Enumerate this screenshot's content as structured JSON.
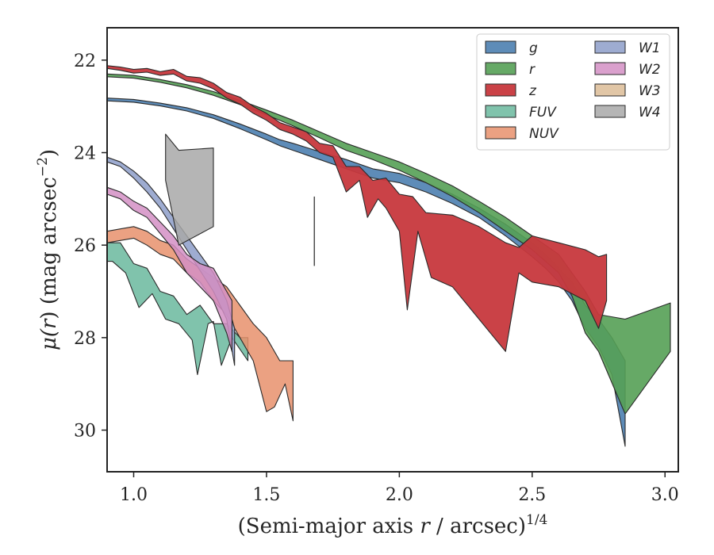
{
  "chart_data": {
    "type": "area",
    "title": "",
    "xlabel_prefix": "(Semi-major axis ",
    "xlabel_var": "r",
    "xlabel_mid": " / arcsec)",
    "xlabel_sup": "1/4",
    "ylabel_prefix": "μ(",
    "ylabel_var": "r",
    "ylabel_mid": ") (mag arcsec",
    "ylabel_sup": "−2",
    "ylabel_suffix": ")",
    "xlim": [
      0.9,
      3.05
    ],
    "ylim": [
      30.9,
      21.3
    ],
    "y_inverted": true,
    "xticks": [
      1.0,
      1.5,
      2.0,
      2.5,
      3.0
    ],
    "xtick_labels": [
      "1.0",
      "1.5",
      "2.0",
      "2.5",
      "3.0"
    ],
    "yticks": [
      22,
      24,
      26,
      28,
      30
    ],
    "ytick_labels": [
      "22",
      "24",
      "26",
      "28",
      "30"
    ],
    "grid": false,
    "legend_placement": "top-right",
    "legend_columns": 2,
    "vline": {
      "x": 1.68,
      "y_top": 24.95,
      "y_bottom": 26.45
    },
    "series": [
      {
        "name": "g",
        "color": "#4c7fb0",
        "alpha": 0.9,
        "upper": [
          [
            0.9,
            22.82
          ],
          [
            1.0,
            22.85
          ],
          [
            1.1,
            22.93
          ],
          [
            1.2,
            23.03
          ],
          [
            1.3,
            23.18
          ],
          [
            1.4,
            23.38
          ],
          [
            1.5,
            23.6
          ],
          [
            1.55,
            23.72
          ],
          [
            1.6,
            23.8
          ],
          [
            1.7,
            23.98
          ],
          [
            1.8,
            24.15
          ],
          [
            1.9,
            24.35
          ],
          [
            2.0,
            24.45
          ],
          [
            2.1,
            24.65
          ],
          [
            2.2,
            24.9
          ],
          [
            2.3,
            25.2
          ],
          [
            2.4,
            25.55
          ],
          [
            2.5,
            25.95
          ],
          [
            2.55,
            26.2
          ],
          [
            2.6,
            26.5
          ],
          [
            2.65,
            26.8
          ],
          [
            2.7,
            27.3
          ],
          [
            2.75,
            27.6
          ],
          [
            2.8,
            28.0
          ],
          [
            2.85,
            28.5
          ]
        ],
        "lower": [
          [
            0.9,
            22.88
          ],
          [
            1.0,
            22.91
          ],
          [
            1.1,
            22.99
          ],
          [
            1.2,
            23.1
          ],
          [
            1.3,
            23.26
          ],
          [
            1.4,
            23.48
          ],
          [
            1.5,
            23.72
          ],
          [
            1.55,
            23.85
          ],
          [
            1.6,
            23.95
          ],
          [
            1.7,
            24.15
          ],
          [
            1.8,
            24.35
          ],
          [
            1.9,
            24.55
          ],
          [
            2.0,
            24.65
          ],
          [
            2.1,
            24.85
          ],
          [
            2.2,
            25.1
          ],
          [
            2.3,
            25.4
          ],
          [
            2.4,
            25.8
          ],
          [
            2.5,
            26.25
          ],
          [
            2.55,
            26.5
          ],
          [
            2.6,
            26.8
          ],
          [
            2.65,
            27.2
          ],
          [
            2.7,
            27.8
          ],
          [
            2.75,
            28.2
          ],
          [
            2.8,
            28.8
          ],
          [
            2.85,
            30.35
          ]
        ]
      },
      {
        "name": "r",
        "color": "#55a055",
        "alpha": 0.9,
        "upper": [
          [
            0.9,
            22.3
          ],
          [
            1.0,
            22.33
          ],
          [
            1.1,
            22.42
          ],
          [
            1.2,
            22.53
          ],
          [
            1.3,
            22.68
          ],
          [
            1.4,
            22.87
          ],
          [
            1.5,
            23.08
          ],
          [
            1.6,
            23.3
          ],
          [
            1.7,
            23.55
          ],
          [
            1.8,
            23.8
          ],
          [
            1.9,
            24.0
          ],
          [
            2.0,
            24.2
          ],
          [
            2.1,
            24.45
          ],
          [
            2.2,
            24.72
          ],
          [
            2.3,
            25.05
          ],
          [
            2.4,
            25.4
          ],
          [
            2.5,
            25.8
          ],
          [
            2.55,
            26.0
          ],
          [
            2.6,
            26.2
          ],
          [
            2.65,
            26.6
          ],
          [
            2.7,
            27.0
          ],
          [
            2.75,
            27.5
          ],
          [
            2.85,
            27.6
          ],
          [
            3.02,
            27.25
          ]
        ],
        "lower": [
          [
            0.9,
            22.36
          ],
          [
            1.0,
            22.39
          ],
          [
            1.1,
            22.48
          ],
          [
            1.2,
            22.6
          ],
          [
            1.3,
            22.76
          ],
          [
            1.4,
            22.96
          ],
          [
            1.5,
            23.18
          ],
          [
            1.6,
            23.42
          ],
          [
            1.7,
            23.68
          ],
          [
            1.8,
            23.95
          ],
          [
            1.9,
            24.15
          ],
          [
            2.0,
            24.38
          ],
          [
            2.1,
            24.65
          ],
          [
            2.2,
            24.95
          ],
          [
            2.3,
            25.3
          ],
          [
            2.4,
            25.7
          ],
          [
            2.5,
            26.1
          ],
          [
            2.55,
            26.35
          ],
          [
            2.6,
            26.6
          ],
          [
            2.65,
            27.1
          ],
          [
            2.7,
            27.9
          ],
          [
            2.75,
            28.3
          ],
          [
            2.85,
            29.65
          ],
          [
            3.02,
            28.3
          ]
        ]
      },
      {
        "name": "z",
        "color": "#c7383d",
        "alpha": 0.95,
        "upper": [
          [
            0.9,
            22.12
          ],
          [
            0.95,
            22.15
          ],
          [
            1.0,
            22.2
          ],
          [
            1.05,
            22.18
          ],
          [
            1.1,
            22.25
          ],
          [
            1.15,
            22.2
          ],
          [
            1.2,
            22.35
          ],
          [
            1.25,
            22.38
          ],
          [
            1.3,
            22.5
          ],
          [
            1.35,
            22.7
          ],
          [
            1.4,
            22.8
          ],
          [
            1.45,
            23.0
          ],
          [
            1.5,
            23.15
          ],
          [
            1.55,
            23.35
          ],
          [
            1.6,
            23.45
          ],
          [
            1.65,
            23.55
          ],
          [
            1.7,
            23.8
          ],
          [
            1.75,
            23.85
          ],
          [
            1.8,
            24.3
          ],
          [
            1.85,
            24.3
          ],
          [
            1.9,
            24.6
          ],
          [
            1.95,
            24.55
          ],
          [
            2.0,
            24.9
          ],
          [
            2.05,
            24.95
          ],
          [
            2.1,
            25.3
          ],
          [
            2.2,
            25.35
          ],
          [
            2.3,
            25.6
          ],
          [
            2.4,
            25.95
          ],
          [
            2.45,
            26.05
          ],
          [
            2.5,
            25.8
          ],
          [
            2.6,
            25.95
          ],
          [
            2.7,
            26.1
          ],
          [
            2.75,
            26.25
          ],
          [
            2.78,
            26.2
          ]
        ],
        "lower": [
          [
            0.9,
            22.18
          ],
          [
            0.95,
            22.22
          ],
          [
            1.0,
            22.28
          ],
          [
            1.05,
            22.26
          ],
          [
            1.1,
            22.33
          ],
          [
            1.15,
            22.3
          ],
          [
            1.2,
            22.45
          ],
          [
            1.25,
            22.5
          ],
          [
            1.3,
            22.62
          ],
          [
            1.35,
            22.82
          ],
          [
            1.4,
            22.95
          ],
          [
            1.45,
            23.15
          ],
          [
            1.5,
            23.3
          ],
          [
            1.55,
            23.5
          ],
          [
            1.6,
            23.6
          ],
          [
            1.65,
            23.75
          ],
          [
            1.7,
            24.0
          ],
          [
            1.75,
            24.1
          ],
          [
            1.8,
            24.85
          ],
          [
            1.85,
            24.6
          ],
          [
            1.88,
            25.4
          ],
          [
            1.92,
            25.0
          ],
          [
            1.95,
            25.2
          ],
          [
            2.0,
            25.7
          ],
          [
            2.03,
            27.4
          ],
          [
            2.07,
            25.7
          ],
          [
            2.12,
            26.7
          ],
          [
            2.2,
            26.9
          ],
          [
            2.4,
            28.3
          ],
          [
            2.45,
            26.6
          ],
          [
            2.5,
            26.8
          ],
          [
            2.6,
            26.9
          ],
          [
            2.7,
            27.2
          ],
          [
            2.75,
            27.8
          ],
          [
            2.78,
            27.2
          ]
        ]
      },
      {
        "name": "FUV",
        "color": "#6ab99e",
        "alpha": 0.85,
        "upper": [
          [
            0.9,
            25.95
          ],
          [
            0.95,
            25.95
          ],
          [
            1.0,
            26.4
          ],
          [
            1.05,
            26.5
          ],
          [
            1.1,
            27.0
          ],
          [
            1.15,
            27.1
          ],
          [
            1.2,
            27.5
          ],
          [
            1.25,
            27.3
          ],
          [
            1.3,
            27.7
          ],
          [
            1.35,
            27.7
          ],
          [
            1.4,
            28.0
          ],
          [
            1.43,
            28.0
          ]
        ],
        "lower": [
          [
            0.9,
            26.35
          ],
          [
            0.92,
            26.35
          ],
          [
            0.97,
            26.6
          ],
          [
            1.02,
            27.35
          ],
          [
            1.07,
            27.05
          ],
          [
            1.12,
            27.6
          ],
          [
            1.17,
            27.7
          ],
          [
            1.22,
            28.05
          ],
          [
            1.24,
            28.8
          ],
          [
            1.28,
            27.7
          ],
          [
            1.3,
            27.65
          ],
          [
            1.33,
            28.6
          ],
          [
            1.37,
            28.0
          ],
          [
            1.43,
            28.5
          ]
        ]
      },
      {
        "name": "NUV",
        "color": "#e8906c",
        "alpha": 0.85,
        "upper": [
          [
            0.9,
            25.7
          ],
          [
            0.95,
            25.65
          ],
          [
            1.0,
            25.6
          ],
          [
            1.05,
            25.7
          ],
          [
            1.1,
            25.9
          ],
          [
            1.15,
            26.0
          ],
          [
            1.2,
            26.3
          ],
          [
            1.25,
            26.5
          ],
          [
            1.3,
            26.7
          ],
          [
            1.35,
            26.9
          ],
          [
            1.4,
            27.3
          ],
          [
            1.45,
            27.7
          ],
          [
            1.5,
            28.0
          ],
          [
            1.55,
            28.5
          ],
          [
            1.6,
            28.5
          ]
        ],
        "lower": [
          [
            0.9,
            25.95
          ],
          [
            0.95,
            25.9
          ],
          [
            1.0,
            25.85
          ],
          [
            1.05,
            26.0
          ],
          [
            1.1,
            26.2
          ],
          [
            1.15,
            26.3
          ],
          [
            1.2,
            26.6
          ],
          [
            1.25,
            26.8
          ],
          [
            1.3,
            27.2
          ],
          [
            1.35,
            27.5
          ],
          [
            1.4,
            28.0
          ],
          [
            1.45,
            28.5
          ],
          [
            1.5,
            29.6
          ],
          [
            1.53,
            29.5
          ],
          [
            1.57,
            29.0
          ],
          [
            1.6,
            29.8
          ]
        ]
      },
      {
        "name": "W1",
        "color": "#8d9ec9",
        "alpha": 0.85,
        "upper": [
          [
            0.9,
            24.1
          ],
          [
            0.95,
            24.2
          ],
          [
            1.0,
            24.4
          ],
          [
            1.05,
            24.65
          ],
          [
            1.1,
            25.0
          ],
          [
            1.15,
            25.4
          ],
          [
            1.2,
            25.8
          ],
          [
            1.25,
            26.2
          ],
          [
            1.3,
            26.6
          ],
          [
            1.35,
            27.2
          ],
          [
            1.38,
            27.8
          ]
        ],
        "lower": [
          [
            0.9,
            24.2
          ],
          [
            0.95,
            24.3
          ],
          [
            1.0,
            24.55
          ],
          [
            1.05,
            24.85
          ],
          [
            1.1,
            25.2
          ],
          [
            1.15,
            25.65
          ],
          [
            1.2,
            26.1
          ],
          [
            1.25,
            26.55
          ],
          [
            1.3,
            27.0
          ],
          [
            1.35,
            27.6
          ],
          [
            1.38,
            28.6
          ]
        ]
      },
      {
        "name": "W2",
        "color": "#d38fc4",
        "alpha": 0.85,
        "upper": [
          [
            0.9,
            24.75
          ],
          [
            0.95,
            24.85
          ],
          [
            1.0,
            25.05
          ],
          [
            1.05,
            25.2
          ],
          [
            1.1,
            25.5
          ],
          [
            1.15,
            25.8
          ],
          [
            1.2,
            26.2
          ],
          [
            1.25,
            26.4
          ],
          [
            1.3,
            26.5
          ],
          [
            1.35,
            27.0
          ],
          [
            1.37,
            27.2
          ]
        ],
        "lower": [
          [
            0.9,
            24.9
          ],
          [
            0.95,
            25.0
          ],
          [
            1.0,
            25.25
          ],
          [
            1.05,
            25.4
          ],
          [
            1.1,
            25.75
          ],
          [
            1.15,
            26.1
          ],
          [
            1.2,
            26.6
          ],
          [
            1.25,
            26.9
          ],
          [
            1.3,
            27.2
          ],
          [
            1.35,
            27.9
          ],
          [
            1.37,
            28.3
          ]
        ]
      },
      {
        "name": "W3",
        "color": "#dcbc96",
        "alpha": 0.85,
        "upper": [],
        "lower": []
      },
      {
        "name": "W4",
        "color": "#a8a8a8",
        "alpha": 0.85,
        "upper": [
          [
            1.12,
            23.6
          ],
          [
            1.17,
            23.95
          ],
          [
            1.3,
            23.9
          ]
        ],
        "lower": [
          [
            1.12,
            24.6
          ],
          [
            1.17,
            26.0
          ],
          [
            1.3,
            25.6
          ]
        ]
      }
    ]
  }
}
